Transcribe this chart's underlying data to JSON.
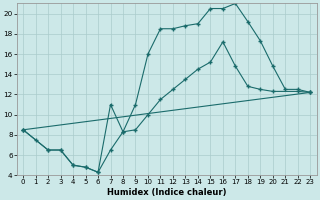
{
  "xlabel": "Humidex (Indice chaleur)",
  "bg_color": "#cce8e8",
  "line_color": "#1a6b6b",
  "grid_color": "#aacccc",
  "xlim": [
    -0.5,
    23.5
  ],
  "ylim": [
    4,
    21
  ],
  "xticks": [
    0,
    1,
    2,
    3,
    4,
    5,
    6,
    7,
    8,
    9,
    10,
    11,
    12,
    13,
    14,
    15,
    16,
    17,
    18,
    19,
    20,
    21,
    22,
    23
  ],
  "yticks": [
    4,
    6,
    8,
    10,
    12,
    14,
    16,
    18,
    20
  ],
  "line1_x": [
    0,
    1,
    2,
    3,
    4,
    5,
    6,
    7,
    8,
    9,
    10,
    11,
    12,
    13,
    14,
    15,
    16,
    17,
    18,
    19,
    20,
    21,
    22,
    23
  ],
  "line1_y": [
    8.5,
    7.5,
    6.5,
    6.5,
    5.0,
    4.8,
    4.3,
    6.5,
    8.3,
    11.0,
    16.0,
    18.5,
    18.5,
    18.8,
    19.0,
    20.5,
    20.5,
    21.0,
    19.2,
    17.3,
    14.8,
    12.5,
    12.5,
    12.2
  ],
  "line2_x": [
    0,
    2,
    3,
    4,
    5,
    6,
    7,
    8,
    9,
    10,
    11,
    12,
    13,
    14,
    15,
    16,
    17,
    18,
    19,
    20,
    22,
    23
  ],
  "line2_y": [
    8.5,
    6.5,
    6.5,
    5.0,
    4.8,
    4.3,
    11.0,
    8.3,
    8.5,
    10.0,
    11.5,
    12.5,
    13.5,
    14.5,
    15.2,
    17.2,
    14.8,
    12.8,
    12.5,
    12.3,
    12.3,
    12.2
  ],
  "line3_x": [
    0,
    23
  ],
  "line3_y": [
    8.5,
    12.2
  ]
}
